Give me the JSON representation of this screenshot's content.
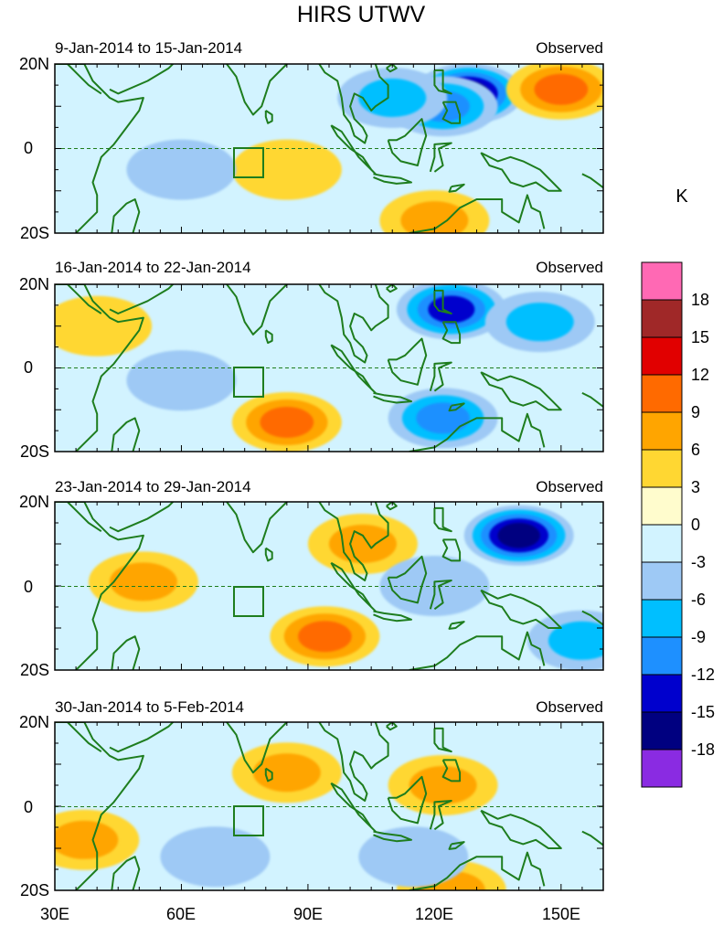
{
  "title": "HIRS UTWV",
  "unit_label": "K",
  "colors": {
    "land": "#1e7d1e",
    "frame": "#000000",
    "levels": [
      "#8a2be2",
      "#000080",
      "#0000cd",
      "#1e90ff",
      "#00bfff",
      "#9ec9f5",
      "#d2f3ff",
      "#fffccd",
      "#ffd732",
      "#ffa500",
      "#ff6a00",
      "#e10000",
      "#a02828",
      "#ff69b4"
    ]
  },
  "chart_data": {
    "type": "heatmap",
    "variable": "Upper tropospheric water vapor anomaly",
    "x_ticks": [
      {
        "lon": 30,
        "label": "30E"
      },
      {
        "lon": 60,
        "label": "60E"
      },
      {
        "lon": 90,
        "label": "90E"
      },
      {
        "lon": 120,
        "label": "120E"
      },
      {
        "lon": 150,
        "label": "150E"
      }
    ],
    "y_ticks": [
      {
        "lat": 20,
        "label": "20N"
      },
      {
        "lat": 0,
        "label": "0"
      },
      {
        "lat": -20,
        "label": "20S"
      }
    ],
    "xlim": [
      30,
      160
    ],
    "ylim": [
      -20,
      20
    ],
    "colorbar": {
      "unit": "K",
      "levels": [
        -18,
        -15,
        -12,
        -9,
        -6,
        -3,
        0,
        3,
        6,
        9,
        12,
        15,
        18
      ],
      "labels": [
        "-18",
        "-15",
        "-12",
        "-9",
        "-6",
        "-3",
        "0",
        "3",
        "6",
        "9",
        "12",
        "15",
        "18"
      ]
    },
    "box_region": {
      "lon": [
        73,
        80
      ],
      "lat": [
        -7,
        0
      ]
    },
    "panels": [
      {
        "period": "9-Jan-2014 to 15-Jan-2014",
        "label": "Observed",
        "anomalies": [
          {
            "lon": 128,
            "lat": 13,
            "value": -15
          },
          {
            "lon": 122,
            "lat": 10,
            "value": -9
          },
          {
            "lon": 110,
            "lat": 12,
            "value": -6
          },
          {
            "lon": 150,
            "lat": 14,
            "value": 9
          },
          {
            "lon": 120,
            "lat": -17,
            "value": 6
          },
          {
            "lon": 85,
            "lat": -5,
            "value": 3
          },
          {
            "lon": 60,
            "lat": -5,
            "value": -3
          }
        ]
      },
      {
        "period": "16-Jan-2014 to 22-Jan-2014",
        "label": "Observed",
        "anomalies": [
          {
            "lon": 124,
            "lat": 14,
            "value": -12
          },
          {
            "lon": 145,
            "lat": 11,
            "value": -6
          },
          {
            "lon": 122,
            "lat": -12,
            "value": -9
          },
          {
            "lon": 85,
            "lat": -13,
            "value": 9
          },
          {
            "lon": 40,
            "lat": 10,
            "value": 3
          },
          {
            "lon": 60,
            "lat": -3,
            "value": -3
          }
        ]
      },
      {
        "period": "23-Jan-2014 to 29-Jan-2014",
        "label": "Observed",
        "anomalies": [
          {
            "lon": 140,
            "lat": 12,
            "value": -15
          },
          {
            "lon": 94,
            "lat": -12,
            "value": 9
          },
          {
            "lon": 103,
            "lat": 10,
            "value": 6
          },
          {
            "lon": 51,
            "lat": 1,
            "value": 6
          },
          {
            "lon": 120,
            "lat": 0,
            "value": -3
          },
          {
            "lon": 155,
            "lat": -13,
            "value": -6
          }
        ]
      },
      {
        "period": "30-Jan-2014 to 5-Feb-2014",
        "label": "Observed",
        "anomalies": [
          {
            "lon": 37,
            "lat": -8,
            "value": 6
          },
          {
            "lon": 85,
            "lat": 8,
            "value": 6
          },
          {
            "lon": 122,
            "lat": 5,
            "value": 6
          },
          {
            "lon": 124,
            "lat": -20,
            "value": 6
          },
          {
            "lon": 68,
            "lat": -12,
            "value": -3
          },
          {
            "lon": 115,
            "lat": -12,
            "value": -3
          }
        ]
      }
    ]
  }
}
